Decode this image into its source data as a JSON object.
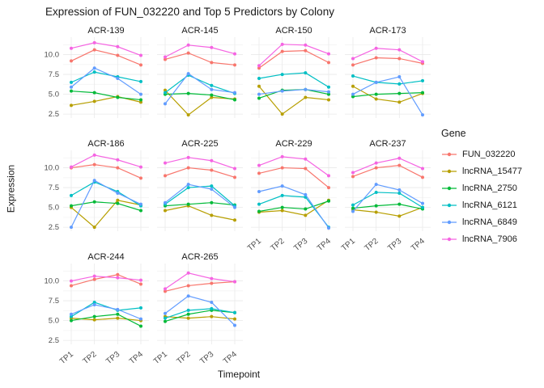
{
  "chart_data": {
    "type": "line",
    "title": "Expression of FUN_032220 and Top 5 Predictors by Colony",
    "xlabel": "Timepoint",
    "ylabel": "Expression",
    "legend_title": "Gene",
    "legend_position": "right",
    "facet_ncol": 4,
    "grid": "on",
    "x": [
      "TP1",
      "TP2",
      "TP3",
      "TP4"
    ],
    "yticks": [
      2.5,
      5.0,
      7.5,
      10.0
    ],
    "ylim": [
      2.0,
      12.2
    ],
    "series_names": [
      "FUN_032220",
      "lncRNA_15477",
      "lncRNA_2750",
      "lncRNA_6121",
      "lncRNA_6849",
      "lncRNA_7906"
    ],
    "series_colors": [
      "#F8766D",
      "#B79F00",
      "#00BA38",
      "#00BFC4",
      "#619CFF",
      "#F564E2"
    ],
    "facets": [
      {
        "name": "ACR-139",
        "values": {
          "FUN_032220": [
            9.2,
            10.6,
            9.9,
            8.7
          ],
          "lncRNA_15477": [
            3.6,
            4.1,
            4.7,
            4.0
          ],
          "lncRNA_2750": [
            5.4,
            5.2,
            4.6,
            4.3
          ],
          "lncRNA_6121": [
            6.5,
            7.8,
            7.2,
            6.6
          ],
          "lncRNA_6849": [
            5.9,
            8.3,
            7.0,
            5.0
          ],
          "lncRNA_7906": [
            10.8,
            11.5,
            11.0,
            9.9
          ]
        }
      },
      {
        "name": "ACR-145",
        "values": {
          "FUN_032220": [
            9.4,
            10.2,
            9.0,
            8.7
          ],
          "lncRNA_15477": [
            5.5,
            2.4,
            4.6,
            4.4
          ],
          "lncRNA_2750": [
            5.0,
            5.1,
            4.9,
            4.3
          ],
          "lncRNA_6121": [
            5.2,
            7.4,
            6.1,
            5.1
          ],
          "lncRNA_6849": [
            3.8,
            7.6,
            5.6,
            5.2
          ],
          "lncRNA_7906": [
            9.7,
            11.2,
            10.9,
            10.1
          ]
        }
      },
      {
        "name": "ACR-150",
        "values": {
          "FUN_032220": [
            8.3,
            10.4,
            10.5,
            9.0
          ],
          "lncRNA_15477": [
            6.0,
            2.5,
            4.6,
            4.3
          ],
          "lncRNA_2750": [
            4.5,
            5.5,
            5.6,
            5.0
          ],
          "lncRNA_6121": [
            7.0,
            7.5,
            7.7,
            5.9
          ],
          "lncRNA_6849": [
            5.0,
            5.4,
            5.6,
            5.3
          ],
          "lncRNA_7906": [
            8.6,
            11.3,
            11.2,
            10.1
          ]
        }
      },
      {
        "name": "ACR-173",
        "values": {
          "FUN_032220": [
            8.7,
            9.6,
            9.5,
            8.9
          ],
          "lncRNA_15477": [
            6.0,
            4.4,
            4.0,
            5.1
          ],
          "lncRNA_2750": [
            4.7,
            5.0,
            5.1,
            5.2
          ],
          "lncRNA_6121": [
            7.3,
            6.5,
            6.3,
            6.7
          ],
          "lncRNA_6849": [
            5.0,
            6.5,
            7.2,
            2.4
          ],
          "lncRNA_7906": [
            9.5,
            10.8,
            10.6,
            9.1
          ]
        }
      },
      {
        "name": "ACR-186",
        "values": {
          "FUN_032220": [
            10.0,
            10.4,
            10.0,
            8.7
          ],
          "lncRNA_15477": [
            5.0,
            2.5,
            5.9,
            5.3
          ],
          "lncRNA_2750": [
            5.2,
            5.7,
            5.5,
            4.6
          ],
          "lncRNA_6121": [
            6.5,
            8.2,
            7.0,
            5.2
          ],
          "lncRNA_6849": [
            2.5,
            8.4,
            6.8,
            5.4
          ],
          "lncRNA_7906": [
            10.1,
            11.6,
            11.0,
            10.1
          ]
        }
      },
      {
        "name": "ACR-225",
        "values": {
          "FUN_032220": [
            9.0,
            10.0,
            9.7,
            8.8
          ],
          "lncRNA_15477": [
            4.6,
            5.2,
            4.0,
            3.4
          ],
          "lncRNA_2750": [
            5.2,
            5.4,
            5.6,
            5.3
          ],
          "lncRNA_6121": [
            5.4,
            7.5,
            7.7,
            5.2
          ],
          "lncRNA_6849": [
            5.6,
            7.9,
            7.3,
            5.0
          ],
          "lncRNA_7906": [
            10.6,
            11.3,
            10.9,
            9.9
          ]
        }
      },
      {
        "name": "ACR-229",
        "values": {
          "FUN_032220": [
            9.3,
            10.0,
            9.9,
            7.5
          ],
          "lncRNA_15477": [
            4.4,
            4.6,
            4.0,
            5.9
          ],
          "lncRNA_2750": [
            4.5,
            5.0,
            4.8,
            5.8
          ],
          "lncRNA_6121": [
            5.4,
            6.5,
            6.3,
            2.5
          ],
          "lncRNA_6849": [
            7.0,
            7.7,
            6.6,
            2.4
          ],
          "lncRNA_7906": [
            10.3,
            11.4,
            11.1,
            9.0
          ]
        }
      },
      {
        "name": "ACR-237",
        "values": {
          "FUN_032220": [
            8.9,
            10.0,
            10.3,
            8.8
          ],
          "lncRNA_15477": [
            4.7,
            4.4,
            3.9,
            5.0
          ],
          "lncRNA_2750": [
            4.9,
            5.2,
            5.4,
            4.8
          ],
          "lncRNA_6121": [
            5.3,
            6.9,
            6.8,
            5.0
          ],
          "lncRNA_6849": [
            4.5,
            7.9,
            7.2,
            5.5
          ],
          "lncRNA_7906": [
            9.4,
            10.6,
            11.2,
            9.9
          ]
        }
      },
      {
        "name": "ACR-244",
        "values": {
          "FUN_032220": [
            9.4,
            10.2,
            10.8,
            9.6
          ],
          "lncRNA_15477": [
            5.3,
            5.1,
            5.3,
            5.0
          ],
          "lncRNA_2750": [
            5.0,
            5.5,
            5.8,
            4.3
          ],
          "lncRNA_6121": [
            5.5,
            7.3,
            6.3,
            6.6
          ],
          "lncRNA_6849": [
            5.8,
            7.0,
            6.4,
            5.2
          ],
          "lncRNA_7906": [
            10.0,
            10.6,
            10.4,
            10.1
          ]
        }
      },
      {
        "name": "ACR-265",
        "values": {
          "FUN_032220": [
            8.7,
            9.4,
            9.7,
            9.9
          ],
          "lncRNA_15477": [
            5.5,
            5.3,
            5.5,
            5.2
          ],
          "lncRNA_2750": [
            4.9,
            5.8,
            6.3,
            6.0
          ],
          "lncRNA_6121": [
            5.3,
            6.3,
            6.5,
            6.0
          ],
          "lncRNA_6849": [
            5.9,
            8.1,
            7.3,
            4.4
          ],
          "lncRNA_7906": [
            9.0,
            11.0,
            10.3,
            9.9
          ]
        }
      }
    ]
  }
}
